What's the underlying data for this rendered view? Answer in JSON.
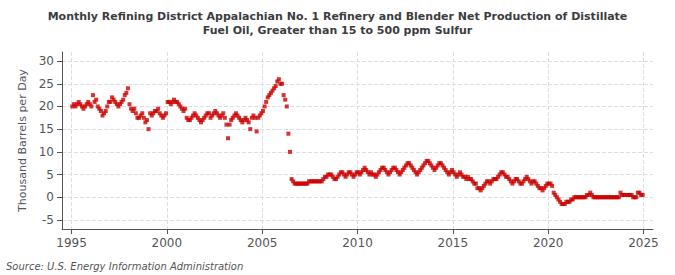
{
  "chart_data": {
    "type": "scatter",
    "title": "Monthly Refining District Appalachian No. 1 Refinery and Blender Net Production of Distillate\nFuel Oil, Greater than 15 to 500 ppm Sulfur",
    "ylabel": "Thousand Barrels per Day",
    "source": "Source: U.S. Energy Information Administration",
    "color": "#cc0000",
    "marker": "square",
    "grid": true,
    "xlim": [
      1994.5,
      2025.5
    ],
    "xticks": [
      1995,
      2000,
      2005,
      2010,
      2015,
      2020,
      2025
    ],
    "ylim": [
      -7,
      32
    ],
    "yticks": [
      -5,
      0,
      5,
      10,
      15,
      20,
      25,
      30
    ],
    "x": [
      1995.0416666666667,
      1995.125,
      1995.2083333333333,
      1995.2916666666667,
      1995.375,
      1995.4583333333333,
      1995.5416666666667,
      1995.625,
      1995.7083333333333,
      1995.7916666666667,
      1995.875,
      1995.9583333333333,
      1996.0416666666667,
      1996.125,
      1996.2083333333333,
      1996.2916666666667,
      1996.375,
      1996.4583333333333,
      1996.5416666666667,
      1996.625,
      1996.7083333333333,
      1996.7916666666667,
      1996.875,
      1996.9583333333333,
      1997.0416666666667,
      1997.125,
      1997.2083333333333,
      1997.2916666666667,
      1997.375,
      1997.4583333333333,
      1997.5416666666667,
      1997.625,
      1997.7083333333333,
      1997.7916666666667,
      1997.875,
      1997.9583333333333,
      1998.0416666666667,
      1998.125,
      1998.2083333333333,
      1998.2916666666667,
      1998.375,
      1998.4583333333333,
      1998.5416666666667,
      1998.625,
      1998.7083333333333,
      1998.7916666666667,
      1998.875,
      1998.9583333333333,
      1999.0416666666667,
      1999.125,
      1999.2083333333333,
      1999.2916666666667,
      1999.375,
      1999.4583333333333,
      1999.5416666666667,
      1999.625,
      1999.7083333333333,
      1999.7916666666667,
      1999.875,
      1999.9583333333333,
      2000.0416666666667,
      2000.125,
      2000.2083333333333,
      2000.2916666666667,
      2000.375,
      2000.4583333333333,
      2000.5416666666667,
      2000.625,
      2000.7083333333333,
      2000.7916666666667,
      2000.875,
      2000.9583333333333,
      2001.0416666666667,
      2001.125,
      2001.2083333333333,
      2001.2916666666667,
      2001.375,
      2001.4583333333333,
      2001.5416666666667,
      2001.625,
      2001.7083333333333,
      2001.7916666666667,
      2001.875,
      2001.9583333333333,
      2002.0416666666667,
      2002.125,
      2002.2083333333333,
      2002.2916666666667,
      2002.375,
      2002.4583333333333,
      2002.5416666666667,
      2002.625,
      2002.7083333333333,
      2002.7916666666667,
      2002.875,
      2002.9583333333333,
      2003.0416666666667,
      2003.125,
      2003.2083333333333,
      2003.2916666666667,
      2003.375,
      2003.4583333333333,
      2003.5416666666667,
      2003.625,
      2003.7083333333333,
      2003.7916666666667,
      2003.875,
      2003.9583333333333,
      2004.0416666666667,
      2004.125,
      2004.2083333333333,
      2004.2916666666667,
      2004.375,
      2004.4583333333333,
      2004.5416666666667,
      2004.625,
      2004.7083333333333,
      2004.7916666666667,
      2004.875,
      2004.9583333333333,
      2005.0416666666667,
      2005.125,
      2005.2083333333333,
      2005.2916666666667,
      2005.375,
      2005.4583333333333,
      2005.5416666666667,
      2005.625,
      2005.7083333333333,
      2005.7916666666667,
      2005.875,
      2005.9583333333333,
      2006.0416666666667,
      2006.125,
      2006.2083333333333,
      2006.2916666666667,
      2006.375,
      2006.4583333333333,
      2006.5416666666667,
      2006.625,
      2006.7083333333333,
      2006.7916666666667,
      2006.875,
      2006.9583333333333,
      2007.0416666666667,
      2007.125,
      2007.2083333333333,
      2007.2916666666667,
      2007.375,
      2007.4583333333333,
      2007.5416666666667,
      2007.625,
      2007.7083333333333,
      2007.7916666666667,
      2007.875,
      2007.9583333333333,
      2008.0416666666667,
      2008.125,
      2008.2083333333333,
      2008.2916666666667,
      2008.375,
      2008.4583333333333,
      2008.5416666666667,
      2008.625,
      2008.7083333333333,
      2008.7916666666667,
      2008.875,
      2008.9583333333333,
      2009.0416666666667,
      2009.125,
      2009.2083333333333,
      2009.2916666666667,
      2009.375,
      2009.4583333333333,
      2009.5416666666667,
      2009.625,
      2009.7083333333333,
      2009.7916666666667,
      2009.875,
      2009.9583333333333,
      2010.0416666666667,
      2010.125,
      2010.2083333333333,
      2010.2916666666667,
      2010.375,
      2010.4583333333333,
      2010.5416666666667,
      2010.625,
      2010.7083333333333,
      2010.7916666666667,
      2010.875,
      2010.9583333333333,
      2011.0416666666667,
      2011.125,
      2011.2083333333333,
      2011.2916666666667,
      2011.375,
      2011.4583333333333,
      2011.5416666666667,
      2011.625,
      2011.7083333333333,
      2011.7916666666667,
      2011.875,
      2011.9583333333333,
      2012.0416666666667,
      2012.125,
      2012.2083333333333,
      2012.2916666666667,
      2012.375,
      2012.4583333333333,
      2012.5416666666667,
      2012.625,
      2012.7083333333333,
      2012.7916666666667,
      2012.875,
      2012.9583333333333,
      2013.0416666666667,
      2013.125,
      2013.2083333333333,
      2013.2916666666667,
      2013.375,
      2013.4583333333333,
      2013.5416666666667,
      2013.625,
      2013.7083333333333,
      2013.7916666666667,
      2013.875,
      2013.9583333333333,
      2014.0416666666667,
      2014.125,
      2014.2083333333333,
      2014.2916666666667,
      2014.375,
      2014.4583333333333,
      2014.5416666666667,
      2014.625,
      2014.7083333333333,
      2014.7916666666667,
      2014.875,
      2014.9583333333333,
      2015.0416666666667,
      2015.125,
      2015.2083333333333,
      2015.2916666666667,
      2015.375,
      2015.4583333333333,
      2015.5416666666667,
      2015.625,
      2015.7083333333333,
      2015.7916666666667,
      2015.875,
      2015.9583333333333,
      2016.0416666666667,
      2016.125,
      2016.2083333333333,
      2016.2916666666667,
      2016.375,
      2016.4583333333333,
      2016.5416666666667,
      2016.625,
      2016.7083333333333,
      2016.7916666666667,
      2016.875,
      2016.9583333333333,
      2017.0416666666667,
      2017.125,
      2017.2083333333333,
      2017.2916666666667,
      2017.375,
      2017.4583333333333,
      2017.5416666666667,
      2017.625,
      2017.7083333333333,
      2017.7916666666667,
      2017.875,
      2017.9583333333333,
      2018.0416666666667,
      2018.125,
      2018.2083333333333,
      2018.2916666666667,
      2018.375,
      2018.4583333333333,
      2018.5416666666667,
      2018.625,
      2018.7083333333333,
      2018.7916666666667,
      2018.875,
      2018.9583333333333,
      2019.0416666666667,
      2019.125,
      2019.2083333333333,
      2019.2916666666667,
      2019.375,
      2019.4583333333333,
      2019.5416666666667,
      2019.625,
      2019.7083333333333,
      2019.7916666666667,
      2019.875,
      2019.9583333333333,
      2020.0416666666667,
      2020.125,
      2020.2083333333333,
      2020.2916666666667,
      2020.375,
      2020.4583333333333,
      2020.5416666666667,
      2020.625,
      2020.7083333333333,
      2020.7916666666667,
      2020.875,
      2020.9583333333333,
      2021.0416666666667,
      2021.125,
      2021.2083333333333,
      2021.2916666666667,
      2021.375,
      2021.4583333333333,
      2021.5416666666667,
      2021.625,
      2021.7083333333333,
      2021.7916666666667,
      2021.875,
      2021.9583333333333,
      2022.0416666666667,
      2022.125,
      2022.2083333333333,
      2022.2916666666667,
      2022.375,
      2022.4583333333333,
      2022.5416666666667,
      2022.625,
      2022.7083333333333,
      2022.7916666666667,
      2022.875,
      2022.9583333333333,
      2023.0416666666667,
      2023.125,
      2023.2083333333333,
      2023.2916666666667,
      2023.375,
      2023.4583333333333,
      2023.5416666666667,
      2023.625,
      2023.7083333333333,
      2023.7916666666667,
      2023.875,
      2023.9583333333333,
      2024.0416666666667,
      2024.125,
      2024.2083333333333,
      2024.2916666666667,
      2024.375,
      2024.4583333333333,
      2024.5416666666667,
      2024.625,
      2024.7083333333333,
      2024.7916666666667,
      2024.875,
      2024.9583333333333
    ],
    "values": [
      20.0,
      20.5,
      20.0,
      20.5,
      21.0,
      20.5,
      20.0,
      19.5,
      20.0,
      20.5,
      21.0,
      20.5,
      20.0,
      22.5,
      21.0,
      21.5,
      20.0,
      19.5,
      19.0,
      18.0,
      18.5,
      19.0,
      20.0,
      21.0,
      21.0,
      22.0,
      21.5,
      21.0,
      20.5,
      20.0,
      20.5,
      21.0,
      21.5,
      22.5,
      23.0,
      24.0,
      20.5,
      19.5,
      19.0,
      19.5,
      18.5,
      17.5,
      17.5,
      18.0,
      18.5,
      17.5,
      16.5,
      17.0,
      15.0,
      18.5,
      18.0,
      18.5,
      19.0,
      19.0,
      19.5,
      18.5,
      18.0,
      17.5,
      18.0,
      18.5,
      21.0,
      21.0,
      20.5,
      21.0,
      21.5,
      21.0,
      21.0,
      20.5,
      20.0,
      19.5,
      19.0,
      19.5,
      17.5,
      17.0,
      17.0,
      17.5,
      18.0,
      18.5,
      18.0,
      17.5,
      17.0,
      16.5,
      17.0,
      17.5,
      18.0,
      18.5,
      18.5,
      17.5,
      18.0,
      18.5,
      19.0,
      18.5,
      18.0,
      17.5,
      18.0,
      18.5,
      17.5,
      16.0,
      13.0,
      16.0,
      17.0,
      17.5,
      18.0,
      18.5,
      18.0,
      17.5,
      17.0,
      16.5,
      17.0,
      17.5,
      17.0,
      16.5,
      15.0,
      17.5,
      18.0,
      17.5,
      14.5,
      17.5,
      18.0,
      18.5,
      19.0,
      20.0,
      21.0,
      22.0,
      22.5,
      23.0,
      23.5,
      24.0,
      24.5,
      25.5,
      26.0,
      25.0,
      25.0,
      22.5,
      21.5,
      20.0,
      14.0,
      10.0,
      4.0,
      3.5,
      3.0,
      3.0,
      3.0,
      3.0,
      3.0,
      3.0,
      3.0,
      3.0,
      3.0,
      3.5,
      3.5,
      3.5,
      3.5,
      3.5,
      3.5,
      3.5,
      3.5,
      3.5,
      4.0,
      4.5,
      4.5,
      5.0,
      5.0,
      5.0,
      4.5,
      4.0,
      4.0,
      4.5,
      5.0,
      5.5,
      5.5,
      5.0,
      4.5,
      5.0,
      5.5,
      5.5,
      5.0,
      4.5,
      5.0,
      5.5,
      5.5,
      5.0,
      5.5,
      6.0,
      6.5,
      6.0,
      5.5,
      5.0,
      5.5,
      5.0,
      5.0,
      4.5,
      5.0,
      5.5,
      6.0,
      6.5,
      6.5,
      6.0,
      5.5,
      5.0,
      5.5,
      6.0,
      6.5,
      6.5,
      6.0,
      5.5,
      5.0,
      5.5,
      6.0,
      6.5,
      7.0,
      7.5,
      7.5,
      7.0,
      6.5,
      6.0,
      5.5,
      5.0,
      5.5,
      6.0,
      6.5,
      7.0,
      7.5,
      8.0,
      8.0,
      7.5,
      7.0,
      6.5,
      6.0,
      6.5,
      7.0,
      7.5,
      7.5,
      7.0,
      6.5,
      6.0,
      5.5,
      5.0,
      5.5,
      6.0,
      5.5,
      5.0,
      4.5,
      5.0,
      5.5,
      5.0,
      4.5,
      4.5,
      4.0,
      4.5,
      4.0,
      4.0,
      3.5,
      3.0,
      3.0,
      2.0,
      2.0,
      1.5,
      2.0,
      2.5,
      3.0,
      3.5,
      3.5,
      3.0,
      3.5,
      4.0,
      4.0,
      4.0,
      4.5,
      5.0,
      5.5,
      5.5,
      5.0,
      4.5,
      4.5,
      4.0,
      3.5,
      3.0,
      3.5,
      4.0,
      4.0,
      3.5,
      3.0,
      3.0,
      3.5,
      4.0,
      4.5,
      4.0,
      3.5,
      3.0,
      3.5,
      3.5,
      3.0,
      2.5,
      2.0,
      2.0,
      1.5,
      2.0,
      2.5,
      3.0,
      3.0,
      3.0,
      2.5,
      1.0,
      0.5,
      0.0,
      -0.5,
      -1.0,
      -1.5,
      -1.5,
      -1.5,
      -1.0,
      -1.0,
      -1.0,
      -0.5,
      -0.5,
      0.0,
      0.0,
      0.0,
      0.0,
      0.0,
      0.0,
      0.0,
      0.0,
      0.5,
      0.5,
      1.0,
      0.5,
      0.0,
      0.0,
      0.0,
      0.0,
      0.0,
      0.0,
      0.0,
      0.0,
      0.0,
      0.0,
      0.0,
      0.0,
      0.0,
      0.0,
      0.0,
      0.0,
      0.0,
      1.0,
      0.5,
      0.5,
      0.5,
      0.5,
      0.5,
      0.5,
      0.5,
      0.0,
      0.0,
      0.0,
      1.0,
      1.0,
      0.5,
      0.5
    ]
  }
}
